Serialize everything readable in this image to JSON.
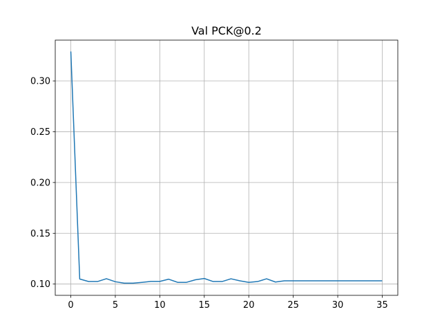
{
  "chart_data": {
    "type": "line",
    "title": "Val PCK@0.2",
    "xlabel": "",
    "ylabel": "",
    "xlim": [
      -1.75,
      36.75
    ],
    "ylim": [
      0.0889,
      0.3402
    ],
    "xticks": [
      0,
      5,
      10,
      15,
      20,
      25,
      30,
      35
    ],
    "yticks": [
      0.1,
      0.15,
      0.2,
      0.25,
      0.3
    ],
    "ytick_labels": [
      "0.10",
      "0.15",
      "0.20",
      "0.25",
      "0.30"
    ],
    "grid": true,
    "series": [
      {
        "color": "#1f77b4",
        "x": [
          0,
          1,
          2,
          3,
          4,
          5,
          6,
          7,
          8,
          9,
          10,
          11,
          12,
          13,
          14,
          15,
          16,
          17,
          18,
          19,
          20,
          21,
          22,
          23,
          24,
          25,
          26,
          27,
          28,
          29,
          30,
          31,
          32,
          33,
          34,
          35
        ],
        "values": [
          0.329,
          0.105,
          0.1025,
          0.1025,
          0.1053,
          0.1023,
          0.1009,
          0.1009,
          0.1017,
          0.1026,
          0.1026,
          0.1048,
          0.1017,
          0.1017,
          0.1042,
          0.1055,
          0.1025,
          0.1025,
          0.1052,
          0.1032,
          0.1017,
          0.1025,
          0.1052,
          0.102,
          0.1032,
          0.1032,
          0.1032,
          0.1032,
          0.1032,
          0.1032,
          0.1032,
          0.1032,
          0.1032,
          0.1032,
          0.1032,
          0.1032
        ]
      }
    ]
  }
}
